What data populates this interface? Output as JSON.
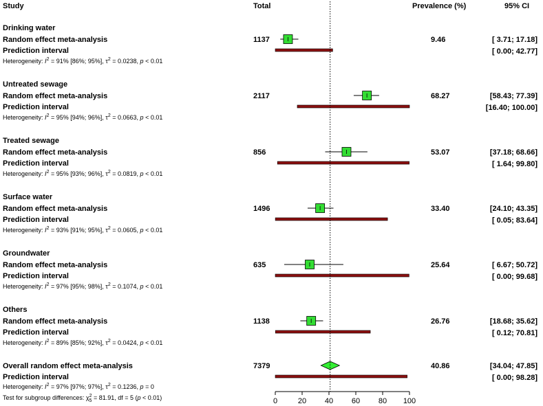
{
  "chart_data": {
    "type": "forest",
    "headers": {
      "study": "Study",
      "total": "Total",
      "prevalence": "Prevalence (%)",
      "ci": "95% CI"
    },
    "axis": {
      "min": 0,
      "max": 100,
      "ticks": [
        "0",
        "20",
        "40",
        "60",
        "80",
        "100"
      ],
      "reference_line": 40.86
    },
    "labels": {
      "re": "Random effect meta-analysis",
      "pi": "Prediction interval"
    },
    "subgroups": [
      {
        "name": "Drinking water",
        "total": "1137",
        "estimate": 9.46,
        "ci_low": 3.71,
        "ci_high": 17.18,
        "pi_low": 0.0,
        "pi_high": 42.77,
        "prev_text": "9.46",
        "ci_text": "[ 3.71;  17.18]",
        "pi_text": "[ 0.00;  42.77]",
        "het_lead": "Heterogeneity: ",
        "het_i2": "I",
        "het_sup": "2",
        "het_mid": " = 91% [86%; 95%], ",
        "het_tau": "τ",
        "het_eq": " = 0.0238, ",
        "het_p": "p",
        "het_tail": " < 0.01"
      },
      {
        "name": "Untreated sewage",
        "total": "2117",
        "estimate": 68.27,
        "ci_low": 58.43,
        "ci_high": 77.39,
        "pi_low": 16.4,
        "pi_high": 100.0,
        "prev_text": "68.27",
        "ci_text": "[58.43;  77.39]",
        "pi_text": "[16.40; 100.00]",
        "het_lead": "Heterogeneity: ",
        "het_i2": "I",
        "het_sup": "2",
        "het_mid": " = 95% [94%; 96%], ",
        "het_tau": "τ",
        "het_eq": " = 0.0663, ",
        "het_p": "p",
        "het_tail": " < 0.01"
      },
      {
        "name": "Treated sewage",
        "total": "856",
        "estimate": 53.07,
        "ci_low": 37.18,
        "ci_high": 68.66,
        "pi_low": 1.64,
        "pi_high": 99.8,
        "prev_text": "53.07",
        "ci_text": "[37.18;  68.66]",
        "pi_text": "[ 1.64;  99.80]",
        "het_lead": "Heterogeneity: ",
        "het_i2": "I",
        "het_sup": "2",
        "het_mid": " = 95% [93%; 96%], ",
        "het_tau": "τ",
        "het_eq": " = 0.0819, ",
        "het_p": "p",
        "het_tail": " < 0.01"
      },
      {
        "name": "Surface water",
        "total": "1496",
        "estimate": 33.4,
        "ci_low": 24.1,
        "ci_high": 43.35,
        "pi_low": 0.05,
        "pi_high": 83.64,
        "prev_text": "33.40",
        "ci_text": "[24.10;  43.35]",
        "pi_text": "[ 0.05;  83.64]",
        "het_lead": "Heterogeneity: ",
        "het_i2": "I",
        "het_sup": "2",
        "het_mid": " = 93% [91%; 95%], ",
        "het_tau": "τ",
        "het_eq": " = 0.0605, ",
        "het_p": "p",
        "het_tail": " < 0.01"
      },
      {
        "name": "Groundwater",
        "total": "635",
        "estimate": 25.64,
        "ci_low": 6.67,
        "ci_high": 50.72,
        "pi_low": 0.0,
        "pi_high": 99.68,
        "prev_text": "25.64",
        "ci_text": "[ 6.67;  50.72]",
        "pi_text": "[ 0.00;  99.68]",
        "het_lead": "Heterogeneity: ",
        "het_i2": "I",
        "het_sup": "2",
        "het_mid": " = 97% [95%; 98%], ",
        "het_tau": "τ",
        "het_eq": " = 0.1074, ",
        "het_p": "p",
        "het_tail": " < 0.01"
      },
      {
        "name": "Others",
        "total": "1138",
        "estimate": 26.76,
        "ci_low": 18.68,
        "ci_high": 35.62,
        "pi_low": 0.12,
        "pi_high": 70.81,
        "prev_text": "26.76",
        "ci_text": "[18.68;  35.62]",
        "pi_text": "[ 0.12;  70.81]",
        "het_lead": "Heterogeneity: ",
        "het_i2": "I",
        "het_sup": "2",
        "het_mid": " = 89% [85%; 92%], ",
        "het_tau": "τ",
        "het_eq": " = 0.0424, ",
        "het_p": "p",
        "het_tail": " < 0.01"
      }
    ],
    "overall": {
      "name": "Overall random effect meta-analysis",
      "total": "7379",
      "estimate": 40.86,
      "ci_low": 34.04,
      "ci_high": 47.85,
      "pi_low": 0.0,
      "pi_high": 98.28,
      "prev_text": "40.86",
      "ci_text": "[34.04;  47.85]",
      "pi_text": "[ 0.00;  98.28]",
      "het_lead": "Heterogeneity: ",
      "het_i2": "I",
      "het_sup": "2",
      "het_mid": " = 97% [97%; 97%], ",
      "het_tau": "τ",
      "het_eq": " = 0.1236, ",
      "het_p": "p",
      "het_tail": " = 0",
      "test_lead": "Test for subgroup differences: ",
      "test_chi": "χ",
      "test_sup": "2",
      "test_sub": "5",
      "test_mid": " = 81.91, df = 5 (",
      "test_p": "p",
      "test_tail": " < 0.01)"
    },
    "colors": {
      "box": "#33dd33",
      "diamond": "#33ee33",
      "pi_bar": "#8b1010",
      "line": "#000000"
    }
  }
}
